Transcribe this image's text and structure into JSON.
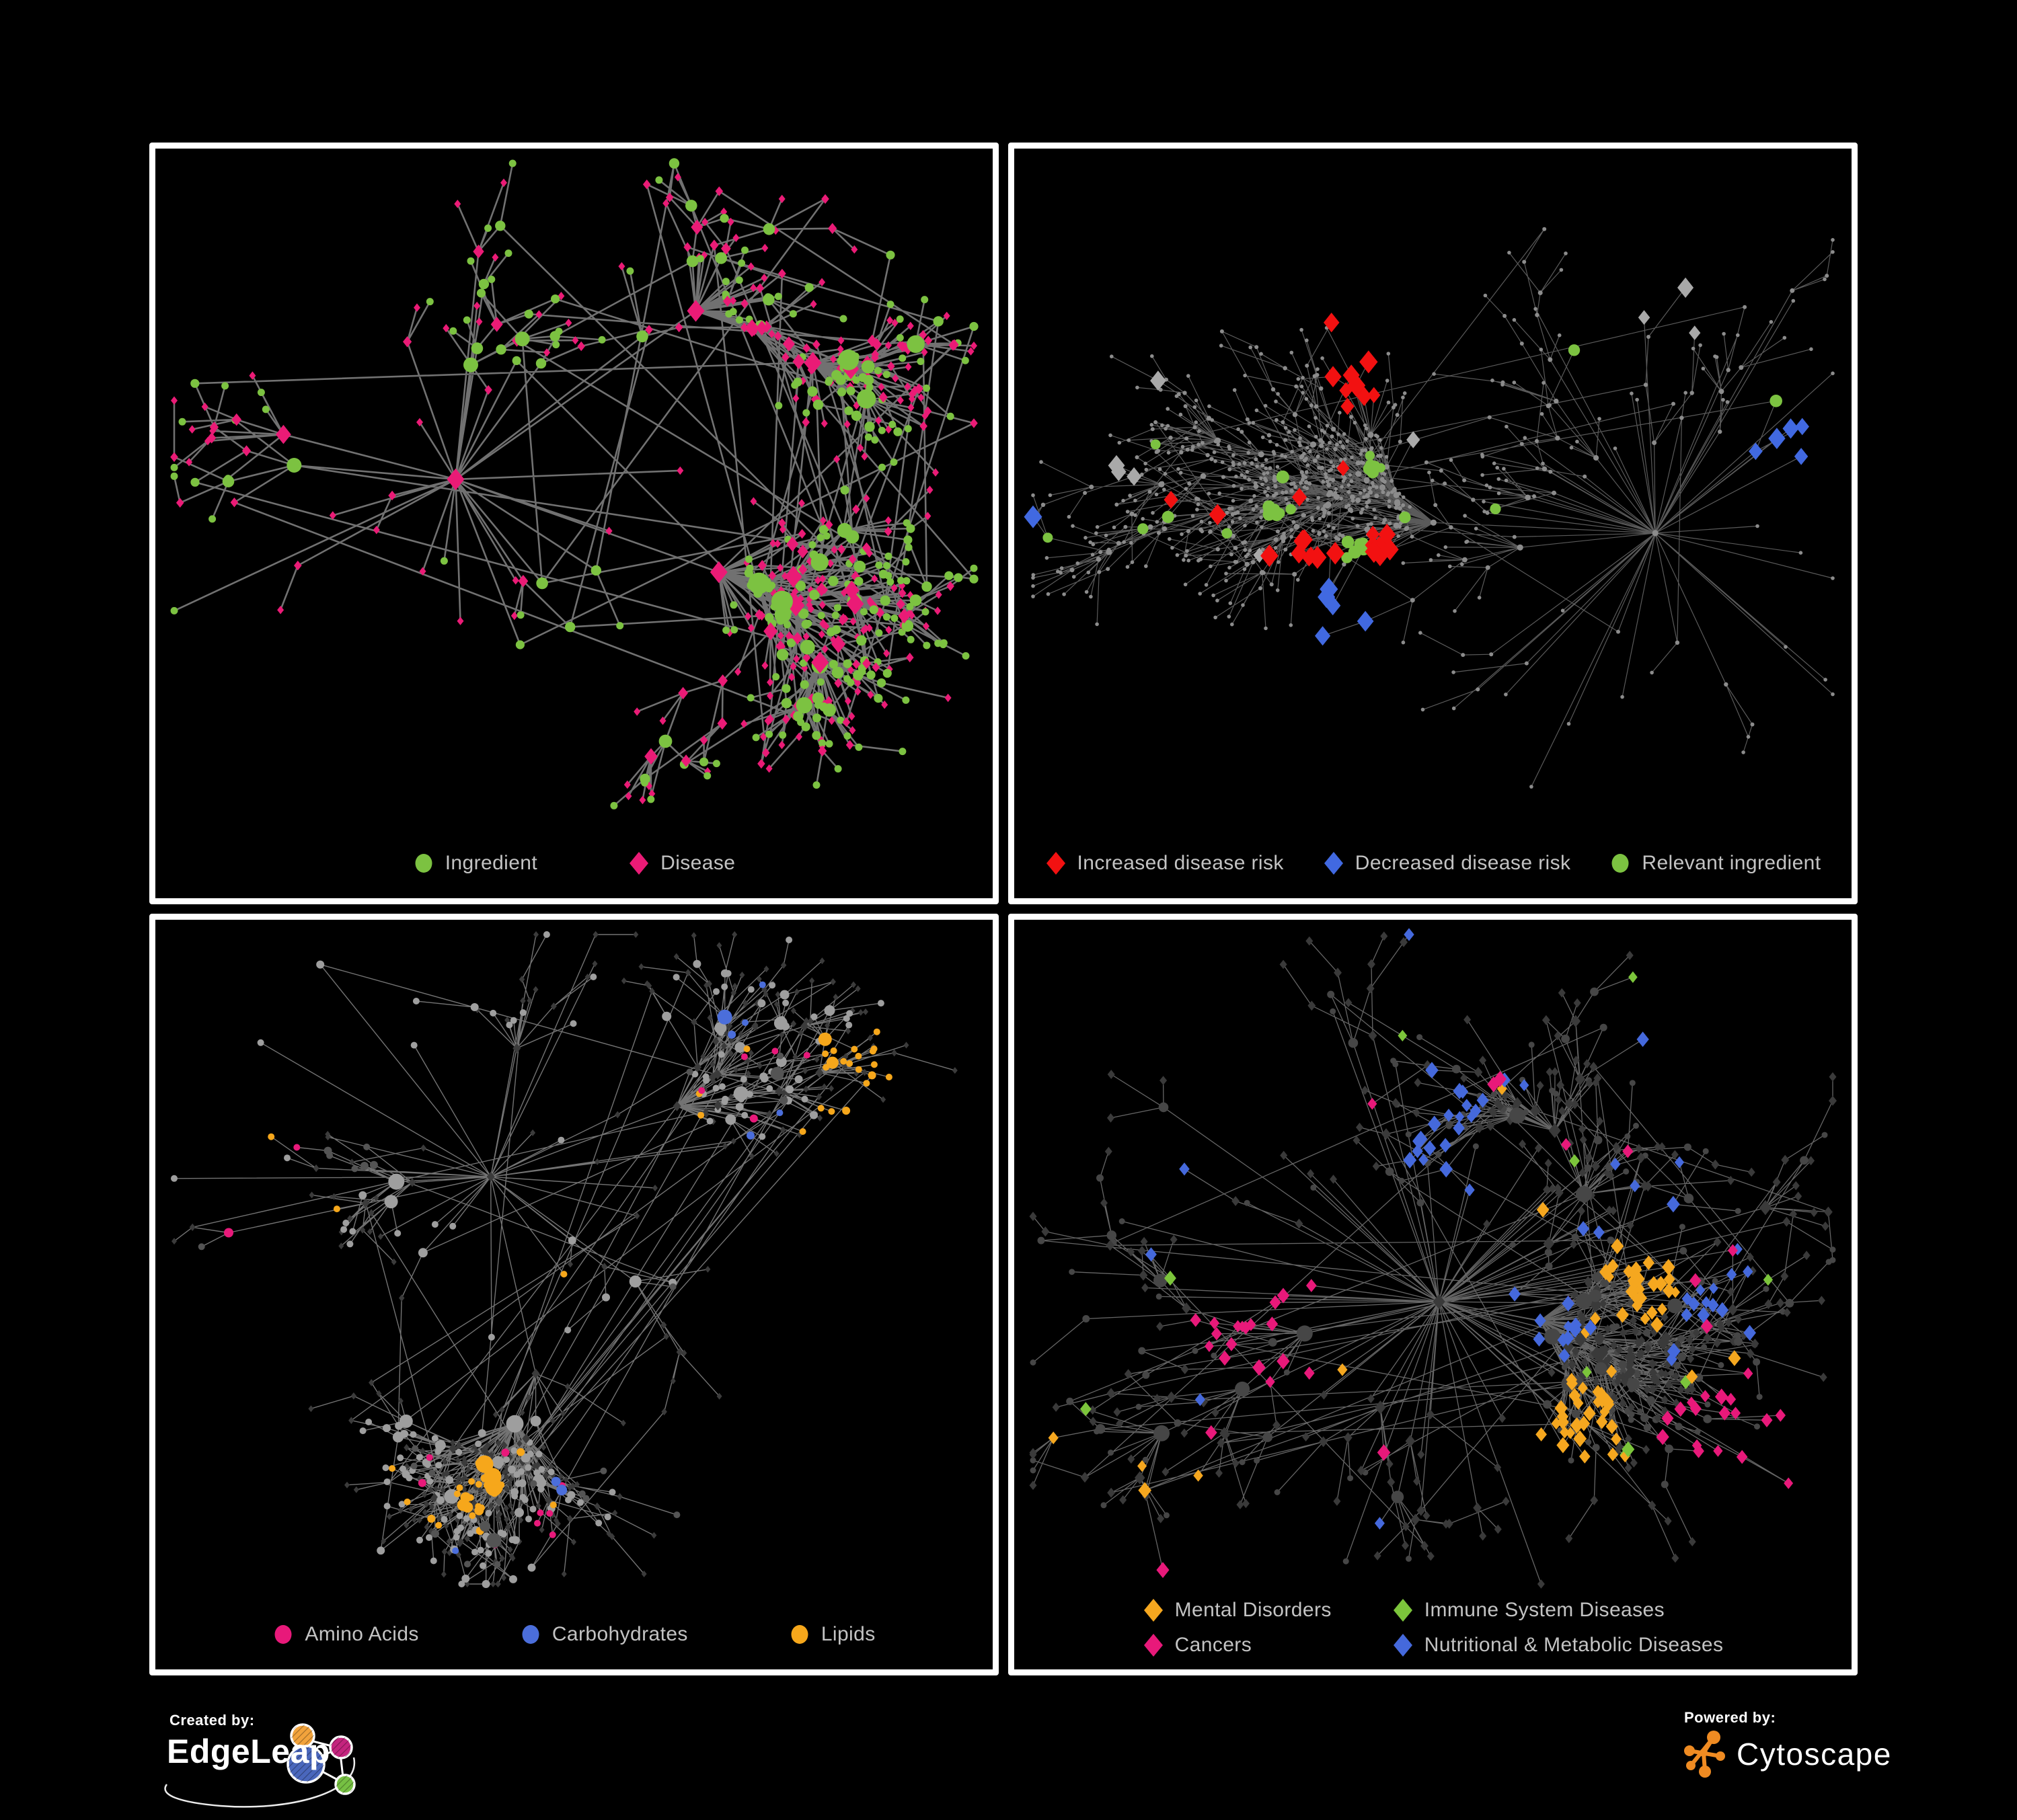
{
  "figure": {
    "background": "#000000",
    "panel_border": "#ffffff"
  },
  "panels": [
    {
      "name": "ingredient-disease-network",
      "legend": {
        "layout": "row",
        "items": [
          {
            "label": "Ingredient",
            "shape": "circle",
            "color": "#7cc241"
          },
          {
            "label": "Disease",
            "shape": "diamond",
            "color": "#ea1b76"
          }
        ]
      },
      "net": {
        "seed": 7,
        "n": 620,
        "step": 16,
        "decay": 0.945,
        "spread": 2.2,
        "rootBoost": 2.6,
        "hubBias": 0.5,
        "cross": 0.12,
        "crossDist": 170,
        "squash": 0.86,
        "edge": {
          "color": "#7d7d7d",
          "width": 2.6,
          "opacity": 0.9
        },
        "base": [
          {
            "w": 0.43,
            "shape": "circle",
            "color": "#7cc241",
            "rmin": 5.5,
            "rk": 1.1,
            "rmax": 16
          },
          {
            "w": 0.57,
            "shape": "diamond",
            "color": "#ea1b76",
            "rmin": 5.0,
            "rk": 0.8,
            "rmax": 13
          }
        ],
        "groups": []
      }
    },
    {
      "name": "disease-risk-network",
      "legend": {
        "layout": "row",
        "items": [
          {
            "label": "Increased disease risk",
            "shape": "diamond",
            "color": "#f21111"
          },
          {
            "label": "Decreased disease risk",
            "shape": "diamond",
            "color": "#4169e1"
          },
          {
            "label": "Relevant ingredient",
            "shape": "circle",
            "color": "#7cc241"
          }
        ]
      },
      "net": {
        "seed": 41,
        "n": 800,
        "step": 16,
        "decay": 0.985,
        "spread": 1.6,
        "rootBoost": 3.4,
        "hubBias": 0.25,
        "cross": 0.05,
        "crossDist": 200,
        "squash": 0.85,
        "edge": {
          "color": "#6a6a6a",
          "width": 1.2,
          "opacity": 0.85
        },
        "base": [
          {
            "w": 1.0,
            "shape": "circle",
            "color": "#8c8c8c",
            "rmin": 2.8,
            "rk": 0.22,
            "rmax": 4.6
          }
        ],
        "groups": [
          {
            "count": 30,
            "eligible": "any",
            "shape": "diamond",
            "color": "#f21111",
            "size": 11,
            "clusterFrac": 0.75,
            "centers": 3
          },
          {
            "count": 11,
            "eligible": "any",
            "shape": "diamond",
            "color": "#4169e1",
            "size": 11,
            "clusterFrac": 0.8,
            "centers": 2
          },
          {
            "count": 9,
            "eligible": "any",
            "shape": "diamond",
            "color": "#a9a9a9",
            "size": 10,
            "clusterFrac": 0.5,
            "centers": 2
          },
          {
            "count": 30,
            "eligible": "any",
            "shape": "circle",
            "color": "#7cc241",
            "size": 8,
            "clusterFrac": 0.6,
            "centers": 3
          }
        ]
      }
    },
    {
      "name": "nutrient-class-network",
      "legend": {
        "layout": "row",
        "items": [
          {
            "label": "Amino Acids",
            "shape": "circle",
            "color": "#e8197a"
          },
          {
            "label": "Carbohydrates",
            "shape": "circle",
            "color": "#4b6edb"
          },
          {
            "label": "Lipids",
            "shape": "circle",
            "color": "#f6a71b"
          }
        ]
      },
      "net": {
        "seed": 97,
        "n": 660,
        "step": 16,
        "decay": 0.96,
        "spread": 1.9,
        "rootBoost": 3.0,
        "hubBias": 0.45,
        "cross": 0.07,
        "crossDist": 180,
        "squash": 0.85,
        "edge": {
          "color": "#909090",
          "width": 1.4,
          "opacity": 0.8
        },
        "base": [
          {
            "w": 0.45,
            "shape": "circle",
            "color": "#9e9e9e",
            "rmin": 5.0,
            "rk": 1.0,
            "rmax": 13
          },
          {
            "w": 0.55,
            "shape": "diamond",
            "color": "#3b3b3b",
            "rmin": 4.0,
            "rk": 0.25,
            "rmax": 6
          }
        ],
        "groups": [
          {
            "count": 55,
            "eligible": "circle",
            "shape": "circle",
            "color": "#f6a71b",
            "size": null,
            "clusterFrac": 0.7,
            "centers": 2
          },
          {
            "count": 16,
            "eligible": "circle",
            "shape": "circle",
            "color": "#e8197a",
            "size": null,
            "clusterFrac": 0.25,
            "centers": 1
          },
          {
            "count": 10,
            "eligible": "circle",
            "shape": "circle",
            "color": "#4b6edb",
            "size": null,
            "clusterFrac": 0.5,
            "centers": 2
          },
          {
            "count": 26,
            "eligible": "circle",
            "shape": "circle",
            "color": "#545454",
            "size": null,
            "clusterFrac": 0.2,
            "centers": 1
          }
        ]
      }
    },
    {
      "name": "disease-category-network",
      "legend": {
        "layout": "grid",
        "items": [
          {
            "label": "Mental Disorders",
            "shape": "diamond",
            "color": "#f5a71f"
          },
          {
            "label": "Immune System Diseases",
            "shape": "diamond",
            "color": "#7cc53b"
          },
          {
            "label": "Cancers",
            "shape": "diamond",
            "color": "#e8197a"
          },
          {
            "label": "Nutritional & Metabolic Diseases",
            "shape": "diamond",
            "color": "#4569dc"
          }
        ]
      },
      "net": {
        "seed": 131,
        "n": 720,
        "step": 16,
        "decay": 0.96,
        "spread": 1.9,
        "rootBoost": 3.0,
        "hubBias": 0.4,
        "cross": 0.07,
        "crossDist": 180,
        "squash": 0.85,
        "edge": {
          "color": "#7e7e7e",
          "width": 1.3,
          "opacity": 0.8
        },
        "base": [
          {
            "w": 0.72,
            "shape": "diamond",
            "color": "#3a3a3a",
            "rmin": 5.5,
            "rk": 0.45,
            "rmax": 9
          },
          {
            "w": 0.28,
            "shape": "circle",
            "color": "#464646",
            "rmin": 4.5,
            "rk": 0.95,
            "rmax": 12
          }
        ],
        "groups": [
          {
            "count": 72,
            "eligible": "diamond",
            "shape": "diamond",
            "color": "#f5a71f",
            "size": 8,
            "clusterFrac": 0.8,
            "centers": 2
          },
          {
            "count": 48,
            "eligible": "diamond",
            "shape": "diamond",
            "color": "#e8197a",
            "size": 8,
            "clusterFrac": 0.75,
            "centers": 2
          },
          {
            "count": 60,
            "eligible": "diamond",
            "shape": "diamond",
            "color": "#4569dc",
            "size": 8,
            "clusterFrac": 0.55,
            "centers": 4
          },
          {
            "count": 10,
            "eligible": "diamond",
            "shape": "diamond",
            "color": "#7cc53b",
            "size": 8,
            "clusterFrac": 0.15,
            "centers": 1
          }
        ]
      }
    }
  ],
  "footer": {
    "created_by": "Created by:",
    "edgeleap": "EdgeLeap",
    "powered_by": "Powered by:",
    "cytoscape": "Cytoscape",
    "edgeleap_colors": {
      "blue": "#4a67bc",
      "orange": "#f2a33c",
      "magenta": "#c4247e",
      "green": "#76c043"
    },
    "cytoscape_orange": "#ef8b22"
  }
}
